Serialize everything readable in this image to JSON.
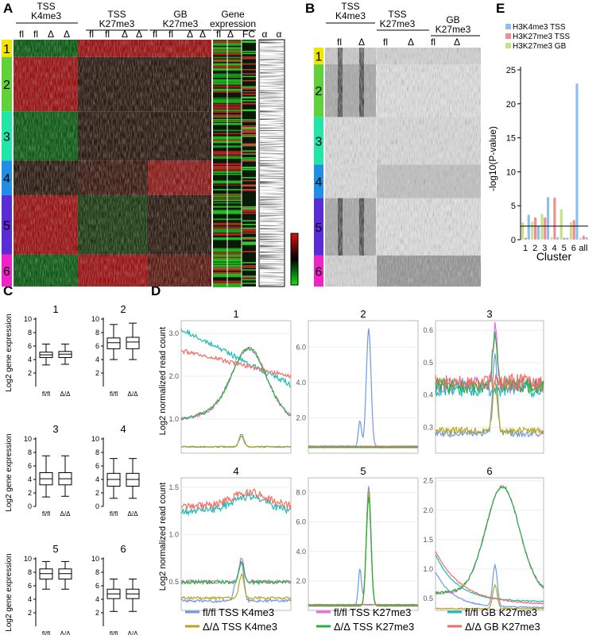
{
  "panels": {
    "A": "A",
    "B": "B",
    "C": "C",
    "D": "D",
    "E": "E"
  },
  "heatmap": {
    "headers": [
      {
        "line1": "TSS",
        "line2": "K4me3"
      },
      {
        "line1": "TSS",
        "line2": "K27me3"
      },
      {
        "line1": "GB",
        "line2": "K27me3"
      },
      {
        "line1": "Gene",
        "line2": "expression"
      }
    ],
    "col_labels": [
      "fl",
      "fl",
      "Δ",
      "Δ",
      "fl",
      "fl",
      "Δ",
      "Δ",
      "fl",
      "fl",
      "Δ",
      "Δ",
      "fl",
      "Δ",
      "FC",
      "α",
      "α"
    ],
    "clusters": [
      "1",
      "2",
      "3",
      "4",
      "5",
      "6"
    ],
    "cluster_colors": [
      "#f2e600",
      "#5fd23a",
      "#20e6a8",
      "#1f8fe6",
      "#5a2bd6",
      "#ef23c8"
    ]
  },
  "reads": {
    "headers": [
      {
        "line1": "TSS",
        "line2": "K4me3"
      },
      {
        "line1": "TSS",
        "line2": "K27me3"
      },
      {
        "line1": "GB",
        "line2": "K27me3"
      }
    ],
    "col_labels": [
      "fl",
      "Δ",
      "fl",
      "Δ",
      "fl",
      "Δ"
    ]
  },
  "boxplots": {
    "ylabel": "Log2 gene expression",
    "xlabels": [
      "fl/fl",
      "Δ/Δ"
    ],
    "panels": [
      {
        "title": "1",
        "ymax": 10,
        "ticks": [
          2,
          4,
          6,
          8,
          10
        ],
        "fl": {
          "min": 3.2,
          "q1": 4.3,
          "med": 4.7,
          "q3": 5.1,
          "max": 6.3
        },
        "d": {
          "min": 3.3,
          "q1": 4.3,
          "med": 4.8,
          "q3": 5.2,
          "max": 6.3
        }
      },
      {
        "title": "2",
        "ymax": 10,
        "ticks": [
          2,
          4,
          6,
          8,
          10
        ],
        "fl": {
          "min": 4.0,
          "q1": 5.6,
          "med": 6.5,
          "q3": 7.2,
          "max": 9.2
        },
        "d": {
          "min": 4.0,
          "q1": 5.6,
          "med": 6.6,
          "q3": 7.3,
          "max": 9.4
        }
      },
      {
        "title": "3",
        "ymax": 10,
        "ticks": [
          0,
          2,
          4,
          6,
          8,
          10
        ],
        "fl": {
          "min": 1.4,
          "q1": 3.2,
          "med": 4.1,
          "q3": 5.0,
          "max": 7.5
        },
        "d": {
          "min": 1.5,
          "q1": 3.2,
          "med": 4.1,
          "q3": 5.0,
          "max": 7.5
        }
      },
      {
        "title": "4",
        "ymax": 10,
        "ticks": [
          0,
          2,
          4,
          6,
          8,
          10
        ],
        "fl": {
          "min": 1.2,
          "q1": 3.0,
          "med": 4.0,
          "q3": 4.9,
          "max": 7.1
        },
        "d": {
          "min": 1.2,
          "q1": 3.0,
          "med": 4.0,
          "q3": 4.9,
          "max": 7.1
        }
      },
      {
        "title": "5",
        "ymax": 10,
        "ticks": [
          2,
          4,
          6,
          8,
          10
        ],
        "fl": {
          "min": 5.5,
          "q1": 7.0,
          "med": 7.8,
          "q3": 8.5,
          "max": 9.6
        },
        "d": {
          "min": 5.5,
          "q1": 7.0,
          "med": 7.8,
          "q3": 8.5,
          "max": 9.6
        }
      },
      {
        "title": "6",
        "ymax": 10,
        "ticks": [
          2,
          4,
          6,
          8,
          10
        ],
        "fl": {
          "min": 2.2,
          "q1": 4.1,
          "med": 4.8,
          "q3": 5.5,
          "max": 7.0
        },
        "d": {
          "min": 2.2,
          "q1": 4.1,
          "med": 4.8,
          "q3": 5.5,
          "max": 7.0
        }
      }
    ]
  },
  "profiles": {
    "ylabel": "Log2 normalized read count",
    "panels": [
      {
        "title": "1",
        "ymin": 0.2,
        "ymax": 3.3,
        "ticks": [
          1.0,
          2.0,
          3.0
        ]
      },
      {
        "title": "2",
        "ymin": 0.0,
        "ymax": 7.5,
        "ticks": [
          2.0,
          4.0,
          6.0
        ]
      },
      {
        "title": "3",
        "ymin": 0.22,
        "ymax": 0.63,
        "ticks": [
          0.3,
          0.4,
          0.5,
          0.6
        ]
      },
      {
        "title": "4",
        "ymin": 0.2,
        "ymax": 1.6,
        "ticks": [
          0.5,
          1.0,
          1.5
        ]
      },
      {
        "title": "5",
        "ymin": 0.0,
        "ymax": 9.0,
        "ticks": [
          2.0,
          4.0,
          6.0,
          8.0
        ]
      },
      {
        "title": "6",
        "ymin": 0.3,
        "ymax": 2.55,
        "ticks": [
          0.5,
          1.0,
          1.5,
          2.0,
          2.5
        ]
      }
    ],
    "legend": [
      {
        "label": "fl/fl TSS K4me3",
        "color": "#6f98e0"
      },
      {
        "label": "fl/fl TSS K27me3",
        "color": "#e96ae0"
      },
      {
        "label": "fl/fl GB K27me3",
        "color": "#22b9b9"
      },
      {
        "label": "Δ/Δ TSS K4me3",
        "color": "#b6a51d"
      },
      {
        "label": "Δ/Δ TSS K27me3",
        "color": "#26b33a"
      },
      {
        "label": "Δ/Δ GB K27me3",
        "color": "#ef6f62"
      }
    ]
  },
  "chart_data": {
    "type": "bar",
    "categories": [
      "1",
      "2",
      "3",
      "4",
      "5",
      "6",
      "all"
    ],
    "series": [
      {
        "name": "H3K27me3 GB",
        "color": "#c8e08a",
        "values": [
          2.6,
          2.7,
          3.8,
          0.4,
          4.5,
          2.6,
          0.3
        ]
      },
      {
        "name": "H3K27me3 TSS",
        "color": "#ef8f8f",
        "values": [
          0.3,
          3.3,
          3.3,
          6.2,
          0.3,
          2.9,
          0.6
        ]
      },
      {
        "name": "H3K4me3 TSS",
        "color": "#8fbfef",
        "values": [
          3.7,
          2.1,
          6.3,
          0.4,
          0.3,
          23,
          0.4
        ]
      }
    ],
    "xlabel": "Cluster",
    "ylabel": "-log10(P-value)",
    "ylim": [
      0,
      25
    ],
    "yticks": [
      0,
      5,
      10,
      15,
      20,
      25
    ],
    "threshold": 2
  }
}
